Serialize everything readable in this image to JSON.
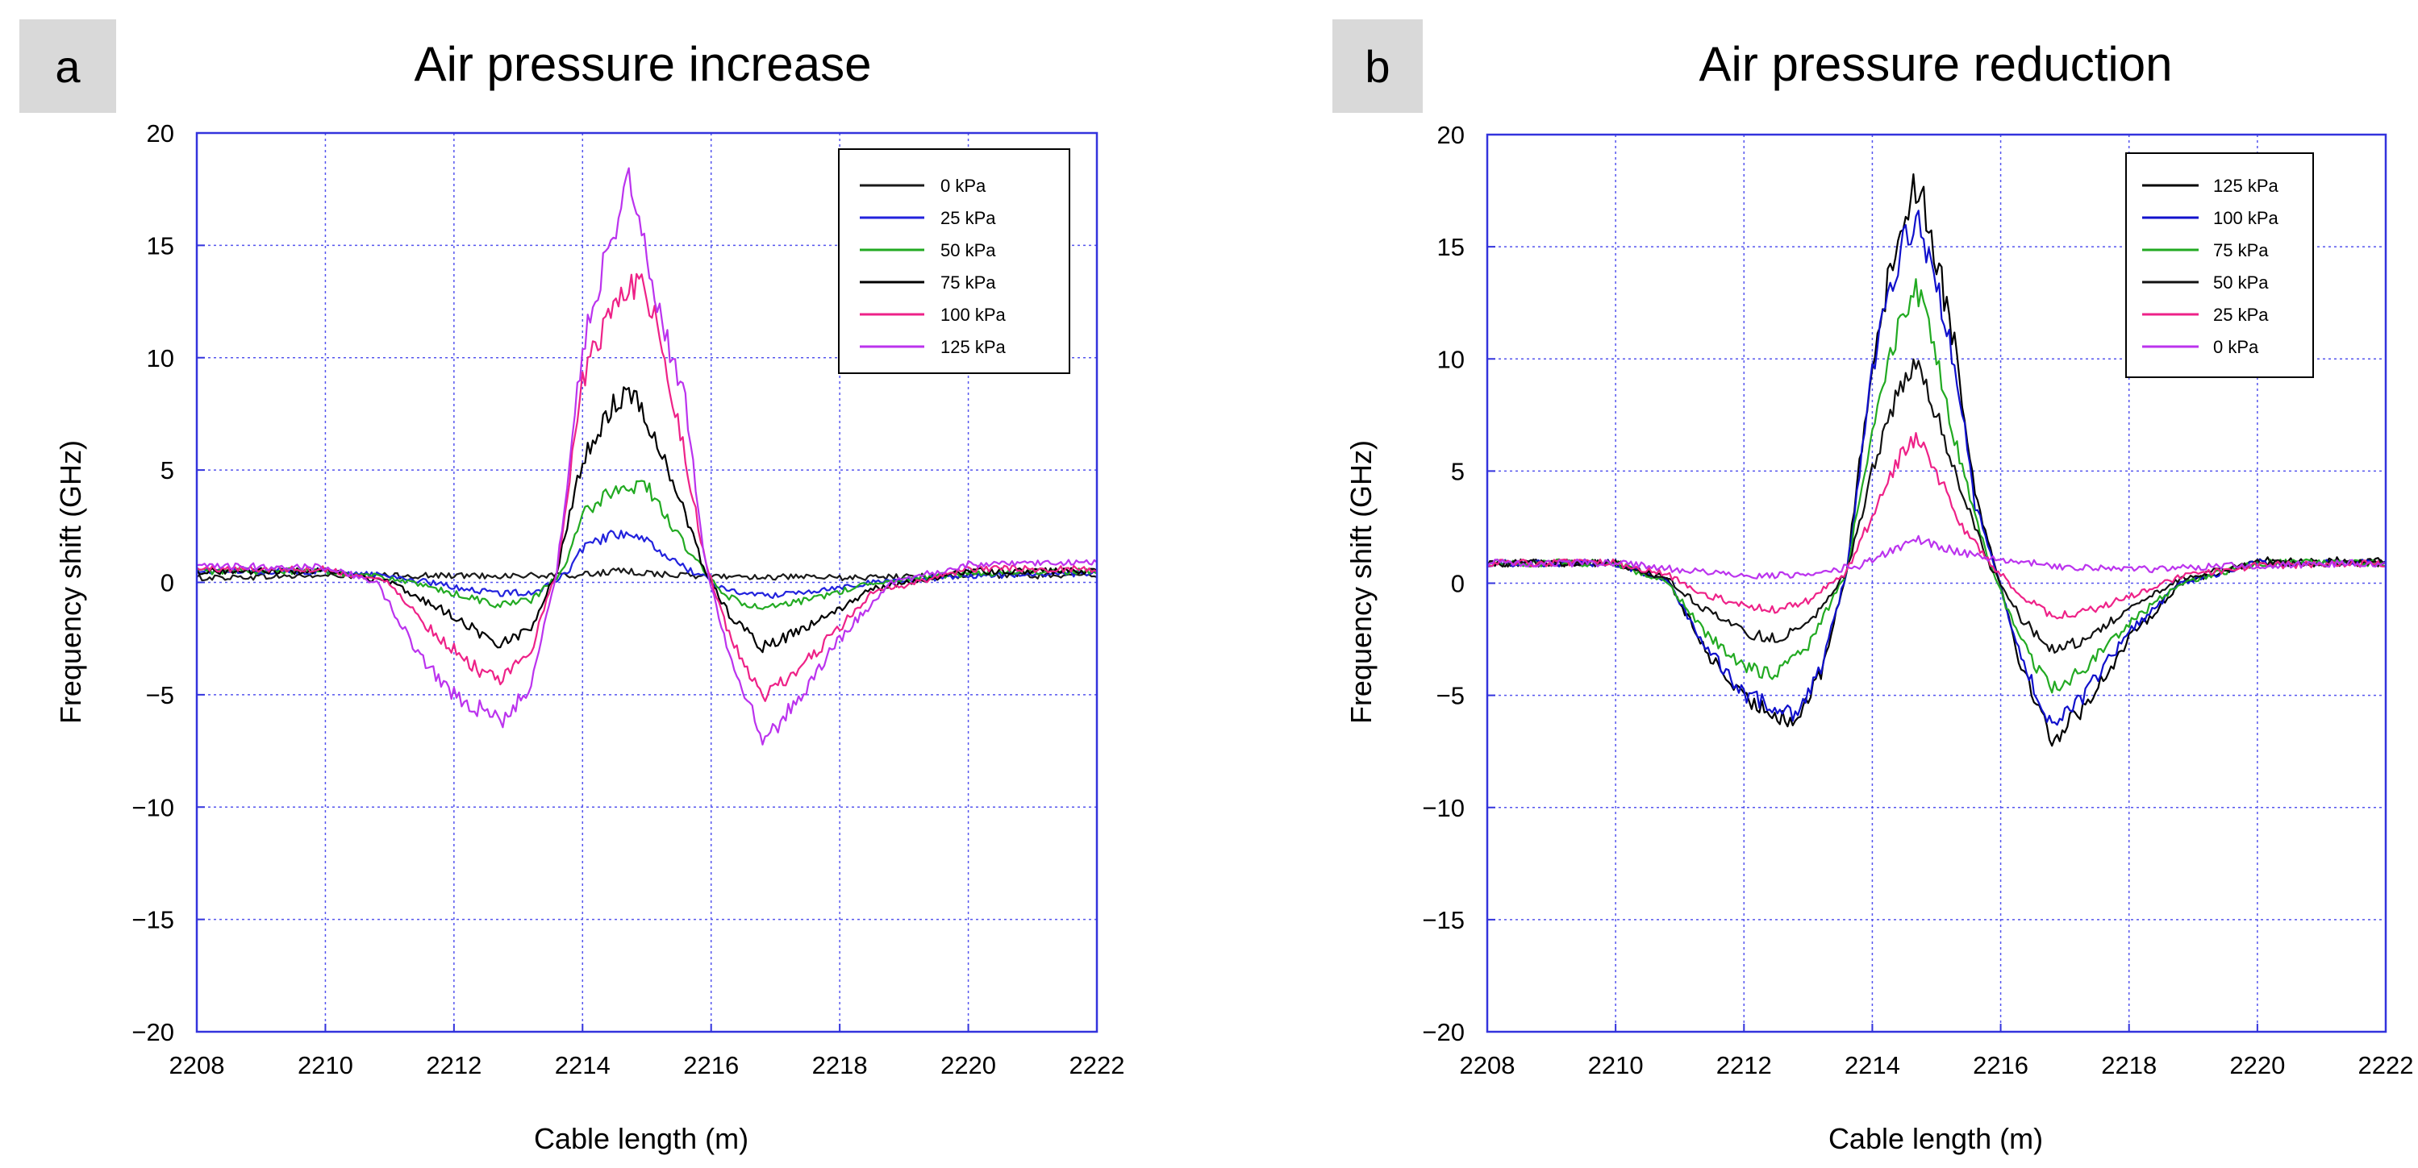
{
  "figure": {
    "panels": [
      {
        "label": "a",
        "title": "Air pressure increase",
        "xlabel": "Cable length (m)",
        "ylabel": "Frequency shift (GHz)",
        "legend": [
          "0 kPa",
          "25 kPa",
          "50 kPa",
          "75 kPa",
          "100 kPa",
          "125 kPa"
        ],
        "legend_colors": [
          "#1a1a1a",
          "#2222dd",
          "#22aa22",
          "#000000",
          "#ee2288",
          "#bb33ee"
        ]
      },
      {
        "label": "b",
        "title": "Air pressure reduction",
        "xlabel": "Cable length (m)",
        "ylabel": "Frequency shift (GHz)",
        "legend": [
          "125 kPa",
          "100 kPa",
          "75 kPa",
          "50 kPa",
          "25 kPa",
          "0 kPa"
        ],
        "legend_colors": [
          "#000000",
          "#1111cc",
          "#22aa22",
          "#111111",
          "#ee2288",
          "#bb33ee"
        ]
      }
    ]
  },
  "chart_data": [
    {
      "type": "line",
      "title": "Air pressure increase",
      "xlabel": "Cable length (m)",
      "ylabel": "Frequency shift (GHz)",
      "xlim": [
        2208,
        2222
      ],
      "ylim": [
        -20,
        20
      ],
      "xticks": [
        2208,
        2210,
        2212,
        2214,
        2216,
        2218,
        2220,
        2222
      ],
      "yticks": [
        -20,
        -15,
        -10,
        -5,
        0,
        5,
        10,
        15,
        20
      ],
      "grid": true,
      "legend_position": "top-right",
      "series": [
        {
          "name": "0 kPa",
          "color": "#1a1a1a",
          "x": [
            2208,
            2210,
            2212,
            2213.8,
            2214.6,
            2215.6,
            2218,
            2220,
            2222
          ],
          "y": [
            0.2,
            0.3,
            0.3,
            0.3,
            0.5,
            0.3,
            0.2,
            0.3,
            0.3
          ]
        },
        {
          "name": "25 kPa",
          "color": "#2222dd",
          "x": [
            2208,
            2210,
            2211,
            2212,
            2212.7,
            2213.3,
            2213.8,
            2214.0,
            2214.5,
            2215.0,
            2215.5,
            2215.9,
            2216.2,
            2216.8,
            2217.5,
            2218.5,
            2220,
            2222
          ],
          "y": [
            0.5,
            0.5,
            0.3,
            -0.2,
            -0.5,
            -0.4,
            0.5,
            1.5,
            2.2,
            1.8,
            0.8,
            0.2,
            -0.3,
            -0.6,
            -0.4,
            0.0,
            0.3,
            0.4
          ]
        },
        {
          "name": "50 kPa",
          "color": "#22aa22",
          "x": [
            2208,
            2210,
            2211,
            2212,
            2212.7,
            2213.2,
            2213.7,
            2214.0,
            2214.5,
            2215.0,
            2215.5,
            2215.9,
            2216.2,
            2216.8,
            2217.5,
            2218.5,
            2220,
            2222
          ],
          "y": [
            0.5,
            0.5,
            0.2,
            -0.5,
            -1.0,
            -0.8,
            0.5,
            3.0,
            4.2,
            4.3,
            2.0,
            0.5,
            -0.6,
            -1.2,
            -0.8,
            0.0,
            0.4,
            0.5
          ]
        },
        {
          "name": "75 kPa",
          "color": "#000000",
          "x": [
            2208,
            2210,
            2211,
            2212,
            2212.7,
            2213.2,
            2213.6,
            2214.0,
            2214.5,
            2214.8,
            2215.2,
            2215.6,
            2215.9,
            2216.3,
            2216.8,
            2217.5,
            2218.5,
            2220,
            2222
          ],
          "y": [
            0.5,
            0.5,
            0.0,
            -1.5,
            -2.8,
            -2.0,
            0.5,
            5.5,
            8.0,
            8.5,
            6.0,
            3.0,
            0.5,
            -1.5,
            -2.9,
            -2.0,
            -0.3,
            0.5,
            0.5
          ]
        },
        {
          "name": "100 kPa",
          "color": "#ee2288",
          "x": [
            2208,
            2210,
            2211,
            2211.6,
            2212.2,
            2212.7,
            2213.2,
            2213.6,
            2214.0,
            2214.5,
            2214.9,
            2215.2,
            2215.5,
            2215.9,
            2216.3,
            2216.8,
            2217.5,
            2218.5,
            2220,
            2222
          ],
          "y": [
            0.6,
            0.6,
            0.0,
            -2.0,
            -3.5,
            -4.5,
            -3.0,
            0.5,
            9.0,
            12.5,
            13.7,
            11.0,
            7.0,
            1.0,
            -2.5,
            -5.2,
            -3.5,
            -0.5,
            0.6,
            0.6
          ]
        },
        {
          "name": "125 kPa",
          "color": "#bb33ee",
          "x": [
            2208,
            2210,
            2210.8,
            2211.4,
            2212.0,
            2212.5,
            2212.8,
            2213.2,
            2213.6,
            2214.0,
            2214.4,
            2214.7,
            2215.0,
            2215.3,
            2215.6,
            2215.9,
            2216.3,
            2216.8,
            2217.3,
            2218.0,
            2218.8,
            2220,
            2222
          ],
          "y": [
            0.7,
            0.7,
            0.0,
            -3.0,
            -5.0,
            -5.8,
            -6.2,
            -4.5,
            0.5,
            10.5,
            15.0,
            18.0,
            14.5,
            11.0,
            8.0,
            1.0,
            -3.5,
            -7.0,
            -5.5,
            -2.5,
            0.0,
            0.8,
            0.9
          ]
        }
      ]
    },
    {
      "type": "line",
      "title": "Air pressure reduction",
      "xlabel": "Cable length (m)",
      "ylabel": "Frequency shift (GHz)",
      "xlim": [
        2208,
        2222
      ],
      "ylim": [
        -20,
        20
      ],
      "xticks": [
        2208,
        2210,
        2212,
        2214,
        2216,
        2218,
        2220,
        2222
      ],
      "yticks": [
        -20,
        -15,
        -10,
        -5,
        0,
        5,
        10,
        15,
        20
      ],
      "grid": true,
      "legend_position": "top-right",
      "series": [
        {
          "name": "125 kPa",
          "color": "#000000",
          "x": [
            2208,
            2210,
            2210.8,
            2211.4,
            2212.0,
            2212.5,
            2212.8,
            2213.2,
            2213.6,
            2214.0,
            2214.4,
            2214.7,
            2215.0,
            2215.3,
            2215.6,
            2215.9,
            2216.3,
            2216.8,
            2217.3,
            2218.0,
            2218.8,
            2220,
            2222
          ],
          "y": [
            0.9,
            0.9,
            0.2,
            -3.0,
            -5.2,
            -5.8,
            -6.2,
            -4.0,
            0.5,
            10.0,
            15.5,
            18.0,
            14.5,
            10.5,
            4.0,
            1.0,
            -3.5,
            -7.0,
            -5.5,
            -2.5,
            0.0,
            1.0,
            1.0
          ]
        },
        {
          "name": "100 kPa",
          "color": "#1111cc",
          "x": [
            2208,
            2210,
            2210.8,
            2211.4,
            2212.0,
            2212.5,
            2212.8,
            2213.2,
            2213.6,
            2214.0,
            2214.4,
            2214.7,
            2215.0,
            2215.3,
            2215.6,
            2215.9,
            2216.3,
            2216.8,
            2217.3,
            2218.0,
            2218.8,
            2220,
            2222
          ],
          "y": [
            0.9,
            0.9,
            0.1,
            -2.8,
            -5.0,
            -5.5,
            -5.8,
            -3.8,
            0.5,
            9.5,
            14.5,
            16.5,
            13.5,
            9.5,
            3.5,
            0.8,
            -3.2,
            -6.5,
            -5.0,
            -2.2,
            0.0,
            0.9,
            0.9
          ]
        },
        {
          "name": "75 kPa",
          "color": "#22aa22",
          "x": [
            2208,
            2210,
            2210.8,
            2211.4,
            2212.0,
            2212.5,
            2213.0,
            2213.6,
            2214.0,
            2214.4,
            2214.7,
            2215.0,
            2215.4,
            2215.8,
            2216.3,
            2216.8,
            2217.3,
            2218.0,
            2218.8,
            2220,
            2222
          ],
          "y": [
            0.9,
            0.9,
            0.0,
            -2.2,
            -3.8,
            -4.0,
            -2.8,
            0.5,
            7.0,
            11.5,
            13.0,
            10.0,
            5.0,
            1.0,
            -2.5,
            -4.8,
            -3.8,
            -1.8,
            0.0,
            0.9,
            0.9
          ]
        },
        {
          "name": "50 kPa",
          "color": "#111111",
          "x": [
            2208,
            2210,
            2210.8,
            2211.4,
            2212.0,
            2212.5,
            2213.0,
            2213.6,
            2214.0,
            2214.4,
            2214.7,
            2215.0,
            2215.4,
            2215.8,
            2216.3,
            2216.8,
            2217.3,
            2218.0,
            2218.8,
            2220,
            2222
          ],
          "y": [
            0.9,
            0.9,
            0.2,
            -1.2,
            -2.2,
            -2.5,
            -1.8,
            0.5,
            5.0,
            8.5,
            9.8,
            7.5,
            4.0,
            1.0,
            -1.5,
            -3.0,
            -2.5,
            -1.2,
            0.2,
            0.9,
            0.9
          ]
        },
        {
          "name": "25 kPa",
          "color": "#ee2288",
          "x": [
            2208,
            2210,
            2210.8,
            2211.4,
            2212.0,
            2212.5,
            2213.0,
            2213.6,
            2214.0,
            2214.4,
            2214.7,
            2215.0,
            2215.4,
            2215.8,
            2216.3,
            2216.8,
            2217.3,
            2218.0,
            2218.8,
            2220,
            2222
          ],
          "y": [
            0.9,
            0.9,
            0.4,
            -0.5,
            -1.0,
            -1.2,
            -0.8,
            0.5,
            3.0,
            5.5,
            6.5,
            5.0,
            2.5,
            1.0,
            -0.5,
            -1.5,
            -1.3,
            -0.6,
            0.3,
            0.8,
            0.9
          ]
        },
        {
          "name": "0 kPa",
          "color": "#bb33ee",
          "x": [
            2208,
            2210,
            2211,
            2212,
            2213,
            2213.8,
            2214.4,
            2214.7,
            2215.1,
            2215.6,
            2216.2,
            2217,
            2218,
            2220,
            2222
          ],
          "y": [
            0.9,
            0.9,
            0.6,
            0.3,
            0.4,
            0.8,
            1.6,
            2.0,
            1.6,
            1.2,
            1.0,
            0.7,
            0.6,
            0.8,
            0.9
          ]
        }
      ]
    }
  ]
}
